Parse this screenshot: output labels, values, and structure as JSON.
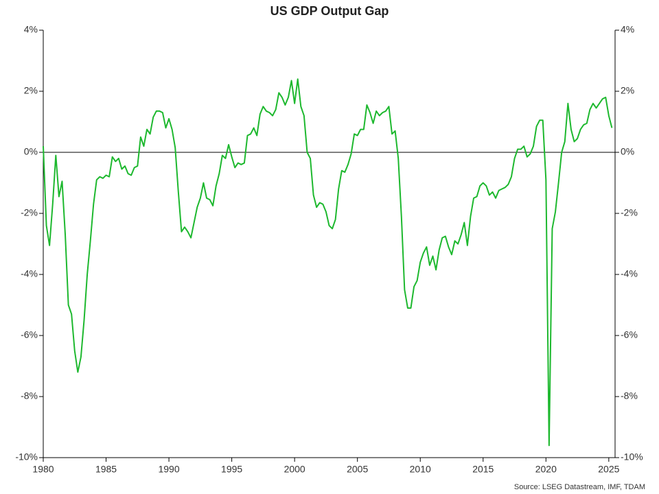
{
  "chart_data": {
    "type": "line",
    "title": "US GDP Output Gap",
    "source": "Source: LSEG Datastream, IMF, TDAM",
    "x": [
      1980,
      1980.25,
      1980.5,
      1980.75,
      1981,
      1981.25,
      1981.5,
      1981.75,
      1982,
      1982.25,
      1982.5,
      1982.75,
      1983,
      1983.25,
      1983.5,
      1983.75,
      1984,
      1984.25,
      1984.5,
      1984.75,
      1985,
      1985.25,
      1985.5,
      1985.75,
      1986,
      1986.25,
      1986.5,
      1986.75,
      1987,
      1987.25,
      1987.5,
      1987.75,
      1988,
      1988.25,
      1988.5,
      1988.75,
      1989,
      1989.25,
      1989.5,
      1989.75,
      1990,
      1990.25,
      1990.5,
      1990.75,
      1991,
      1991.25,
      1991.5,
      1991.75,
      1992,
      1992.25,
      1992.5,
      1992.75,
      1993,
      1993.25,
      1993.5,
      1993.75,
      1994,
      1994.25,
      1994.5,
      1994.75,
      1995,
      1995.25,
      1995.5,
      1995.75,
      1996,
      1996.25,
      1996.5,
      1996.75,
      1997,
      1997.25,
      1997.5,
      1997.75,
      1998,
      1998.25,
      1998.5,
      1998.75,
      1999,
      1999.25,
      1999.5,
      1999.75,
      2000,
      2000.25,
      2000.5,
      2000.75,
      2001,
      2001.25,
      2001.5,
      2001.75,
      2002,
      2002.25,
      2002.5,
      2002.75,
      2003,
      2003.25,
      2003.5,
      2003.75,
      2004,
      2004.25,
      2004.5,
      2004.75,
      2005,
      2005.25,
      2005.5,
      2005.75,
      2006,
      2006.25,
      2006.5,
      2006.75,
      2007,
      2007.25,
      2007.5,
      2007.75,
      2008,
      2008.25,
      2008.5,
      2008.75,
      2009,
      2009.25,
      2009.5,
      2009.75,
      2010,
      2010.25,
      2010.5,
      2010.75,
      2011,
      2011.25,
      2011.5,
      2011.75,
      2012,
      2012.25,
      2012.5,
      2012.75,
      2013,
      2013.25,
      2013.5,
      2013.75,
      2014,
      2014.25,
      2014.5,
      2014.75,
      2015,
      2015.25,
      2015.5,
      2015.75,
      2016,
      2016.25,
      2016.5,
      2016.75,
      2017,
      2017.25,
      2017.5,
      2017.75,
      2018,
      2018.25,
      2018.5,
      2018.75,
      2019,
      2019.25,
      2019.5,
      2019.75,
      2020,
      2020.25,
      2020.5,
      2020.75,
      2021,
      2021.25,
      2021.5,
      2021.75,
      2022,
      2022.25,
      2022.5,
      2022.75,
      2023,
      2023.25,
      2023.5,
      2023.75,
      2024,
      2024.25,
      2024.5,
      2024.75,
      2025,
      2025.25
    ],
    "series": [
      {
        "name": "US GDP Output Gap",
        "color": "#1db82e",
        "values": [
          0.2,
          -2.4,
          -3.05,
          -1.7,
          -0.1,
          -1.45,
          -0.95,
          -2.7,
          -5.0,
          -5.3,
          -6.5,
          -7.2,
          -6.7,
          -5.5,
          -4.0,
          -2.9,
          -1.7,
          -0.9,
          -0.8,
          -0.85,
          -0.75,
          -0.8,
          -0.15,
          -0.3,
          -0.2,
          -0.55,
          -0.45,
          -0.7,
          -0.75,
          -0.5,
          -0.45,
          0.5,
          0.2,
          0.75,
          0.6,
          1.15,
          1.35,
          1.35,
          1.3,
          0.8,
          1.1,
          0.75,
          0.15,
          -1.3,
          -2.6,
          -2.45,
          -2.6,
          -2.8,
          -2.3,
          -1.8,
          -1.5,
          -1.0,
          -1.5,
          -1.55,
          -1.75,
          -1.1,
          -0.7,
          -0.1,
          -0.2,
          0.25,
          -0.15,
          -0.5,
          -0.35,
          -0.4,
          -0.35,
          0.55,
          0.6,
          0.8,
          0.55,
          1.25,
          1.5,
          1.35,
          1.3,
          1.2,
          1.4,
          1.95,
          1.8,
          1.55,
          1.8,
          2.35,
          1.6,
          2.4,
          1.5,
          1.2,
          0.0,
          -0.2,
          -1.4,
          -1.8,
          -1.65,
          -1.7,
          -1.95,
          -2.4,
          -2.5,
          -2.2,
          -1.2,
          -0.6,
          -0.65,
          -0.4,
          -0.05,
          0.6,
          0.55,
          0.75,
          0.75,
          1.55,
          1.3,
          0.95,
          1.35,
          1.2,
          1.3,
          1.35,
          1.5,
          0.6,
          0.7,
          -0.2,
          -2.1,
          -4.5,
          -5.1,
          -5.1,
          -4.4,
          -4.2,
          -3.6,
          -3.3,
          -3.1,
          -3.7,
          -3.4,
          -3.85,
          -3.2,
          -2.8,
          -2.75,
          -3.1,
          -3.35,
          -2.9,
          -3.0,
          -2.7,
          -2.3,
          -3.05,
          -2.1,
          -1.5,
          -1.45,
          -1.1,
          -1.0,
          -1.1,
          -1.4,
          -1.3,
          -1.5,
          -1.25,
          -1.2,
          -1.15,
          -1.05,
          -0.8,
          -0.2,
          0.1,
          0.1,
          0.2,
          -0.15,
          -0.05,
          0.2,
          0.85,
          1.05,
          1.05,
          -0.9,
          -9.6,
          -2.5,
          -1.95,
          -1.0,
          0.0,
          0.35,
          1.6,
          0.75,
          0.35,
          0.45,
          0.75,
          0.9,
          0.95,
          1.4,
          1.6,
          1.45,
          1.6,
          1.75,
          1.8,
          1.2,
          0.8
        ]
      }
    ],
    "xlim": [
      1980,
      2025.5
    ],
    "xticks": [
      1980,
      1985,
      1990,
      1995,
      2000,
      2005,
      2010,
      2015,
      2020,
      2025
    ],
    "ylim": [
      -10,
      4
    ],
    "yticks": [
      {
        "value": 4,
        "label": "4%"
      },
      {
        "value": 2,
        "label": "2%"
      },
      {
        "value": 0,
        "label": "0%"
      },
      {
        "value": -2,
        "label": "-2%"
      },
      {
        "value": -4,
        "label": "-4%"
      },
      {
        "value": -6,
        "label": "-6%"
      },
      {
        "value": -8,
        "label": "-8%"
      },
      {
        "value": -10,
        "label": "-10%"
      }
    ],
    "y2lim": [
      -10,
      4
    ],
    "y2ticks": [
      {
        "value": 4,
        "label": "4%"
      },
      {
        "value": 2,
        "label": "2%"
      },
      {
        "value": 0,
        "label": "0%"
      },
      {
        "value": -2,
        "label": "-2%"
      },
      {
        "value": -4,
        "label": "-4%"
      },
      {
        "value": -6,
        "label": "-6%"
      },
      {
        "value": -8,
        "label": "-8%"
      },
      {
        "value": -10,
        "label": "-10%"
      }
    ]
  }
}
